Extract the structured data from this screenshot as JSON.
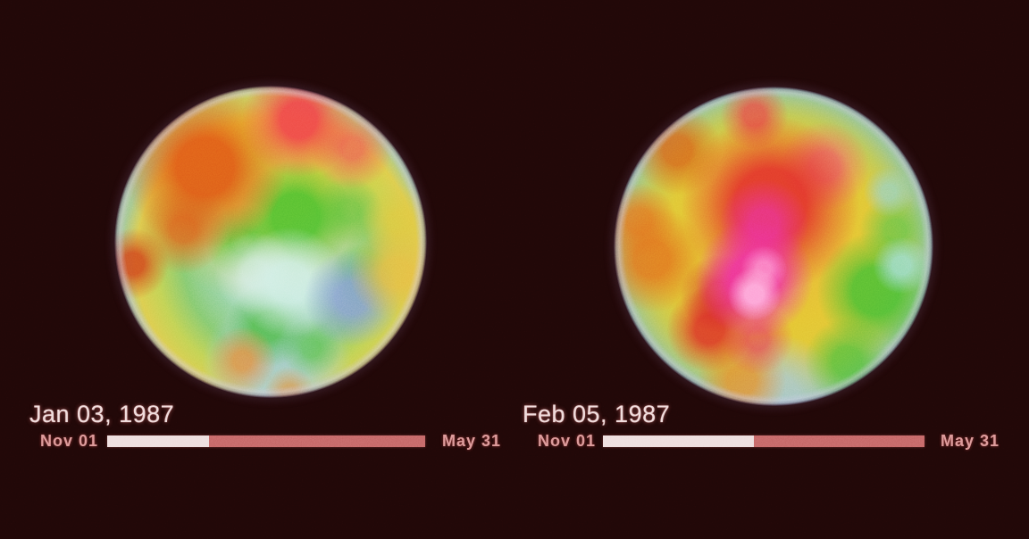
{
  "palette": {
    "background": "#1e0707",
    "date_text": "#eed9d9",
    "tick_text": "#d89090",
    "bar_elapsed": "#ecdcdc",
    "bar_remaining": "#c16262"
  },
  "panels": [
    {
      "date_label": "Jan 03, 1987",
      "timeline": {
        "start_label": "Nov 01",
        "end_label": "May 31",
        "progress_percent": 32
      }
    },
    {
      "date_label": "Feb 05, 1987",
      "timeline": {
        "start_label": "Nov 01",
        "end_label": "May 31",
        "progress_percent": 47
      }
    }
  ],
  "chart_data": [
    {
      "type": "heatmap",
      "projection": "polar globe",
      "title": "Jan 03, 1987",
      "timeline": {
        "start": "Nov 01",
        "end": "May 31",
        "position_fraction": 0.32
      },
      "color_regions": [
        {
          "position": "top",
          "color": "red"
        },
        {
          "position": "upper-left",
          "color": "orange-red"
        },
        {
          "position": "upper ring",
          "color": "yellow"
        },
        {
          "position": "center-north",
          "color": "green"
        },
        {
          "position": "center",
          "color": "pale cyan"
        },
        {
          "position": "center-right",
          "color": "blue"
        },
        {
          "position": "bottom",
          "color": "cyan-blue mottled"
        },
        {
          "position": "lower-left",
          "color": "orange spots"
        },
        {
          "position": "left-edge",
          "color": "orange spot"
        },
        {
          "position": "right-edge",
          "color": "yellow-orange band"
        },
        {
          "position": "rim",
          "color": "pale violet"
        }
      ]
    },
    {
      "type": "heatmap",
      "projection": "polar globe",
      "title": "Feb 05, 1987",
      "timeline": {
        "start": "Nov 01",
        "end": "May 31",
        "position_fraction": 0.47
      },
      "color_regions": [
        {
          "position": "center",
          "color": "magenta-pink core with pale pink spot"
        },
        {
          "position": "around center",
          "color": "deep red"
        },
        {
          "position": "left",
          "color": "orange band"
        },
        {
          "position": "top-left edge",
          "color": "orange-red"
        },
        {
          "position": "top",
          "color": "red patch in yellow-orange"
        },
        {
          "position": "mid ring",
          "color": "yellow"
        },
        {
          "position": "right",
          "color": "green with cyan patches"
        },
        {
          "position": "bottom",
          "color": "green and orange over cyan rim"
        },
        {
          "position": "rim",
          "color": "pale blue"
        }
      ]
    }
  ]
}
